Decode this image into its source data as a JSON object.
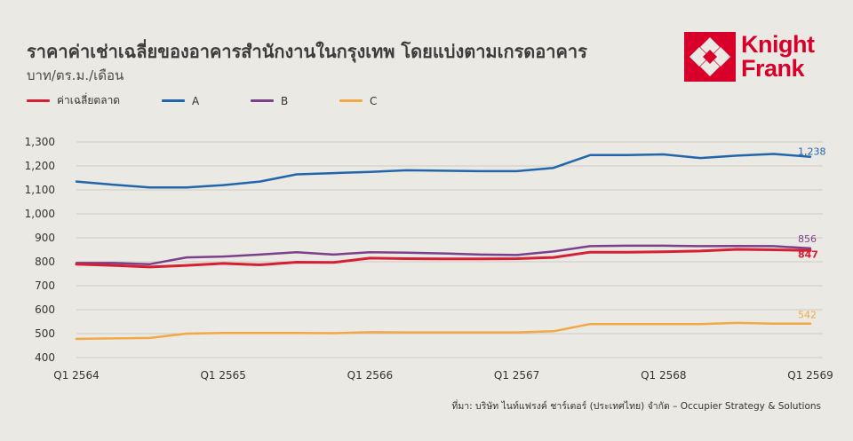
{
  "title": "ราคาค่าเช่าเฉลี่ยของอาคารสำนักงานในกรุงเทพ โดยแบ่งตามเกรดอาคาร",
  "subtitle": "บาท/ตร.ม./เดือน",
  "logo": {
    "line1": "Knight",
    "line2": "Frank",
    "color": "#d8002a"
  },
  "source": "ที่มา: บริษัท ไนท์แฟรงค์ ชาร์เตอร์ (ประเทศไทย) จำกัด – Occupier Strategy & Solutions",
  "chart_data": {
    "type": "line",
    "title": "ราคาค่าเช่าเฉลี่ยของอาคารสำนักงานในกรุงเทพ โดยแบ่งตามเกรดอาคาร",
    "ylabel": "บาท/ตร.ม./เดือน",
    "xlabel": "",
    "ylim": [
      400,
      1300
    ],
    "yticks": [
      "400",
      "500",
      "600",
      "700",
      "800",
      "900",
      "1,000",
      "1,100",
      "1,200",
      "1,300"
    ],
    "xtick_labels": [
      "Q1 2564",
      "Q1 2565",
      "Q1 2566",
      "Q1 2567",
      "Q1 2568",
      "Q1 2569"
    ],
    "grid": true,
    "legend_position": "top-left",
    "categories": [
      "Q1 2564",
      "Q2 2564",
      "Q3 2564",
      "Q4 2564",
      "Q1 2565",
      "Q2 2565",
      "Q3 2565",
      "Q4 2565",
      "Q1 2566",
      "Q2 2566",
      "Q3 2566",
      "Q4 2566",
      "Q1 2567",
      "Q2 2567",
      "Q3 2567",
      "Q4 2567",
      "Q1 2568",
      "Q2 2568",
      "Q3 2568",
      "Q4 2568",
      "Q1 2569"
    ],
    "series": [
      {
        "name": "ค่าเฉลี่ยตลาด",
        "color": "#d71f34",
        "end_label": "847",
        "values": [
          790,
          785,
          778,
          785,
          793,
          787,
          798,
          797,
          815,
          813,
          812,
          812,
          813,
          818,
          840,
          840,
          842,
          845,
          852,
          850,
          847
        ]
      },
      {
        "name": "A",
        "color": "#2166ac",
        "end_label": "1,238",
        "values": [
          1135,
          1122,
          1110,
          1110,
          1120,
          1135,
          1165,
          1170,
          1175,
          1182,
          1180,
          1178,
          1178,
          1192,
          1245,
          1245,
          1248,
          1233,
          1243,
          1250,
          1238
        ]
      },
      {
        "name": "B",
        "color": "#7b3f8c",
        "end_label": "856",
        "values": [
          795,
          795,
          790,
          818,
          822,
          830,
          840,
          830,
          840,
          838,
          835,
          830,
          828,
          843,
          865,
          867,
          867,
          865,
          866,
          865,
          856
        ]
      },
      {
        "name": "C",
        "color": "#f2a846",
        "end_label": "542",
        "values": [
          478,
          480,
          482,
          500,
          503,
          503,
          503,
          502,
          506,
          505,
          505,
          505,
          505,
          510,
          540,
          540,
          540,
          540,
          545,
          542,
          542
        ]
      }
    ]
  }
}
